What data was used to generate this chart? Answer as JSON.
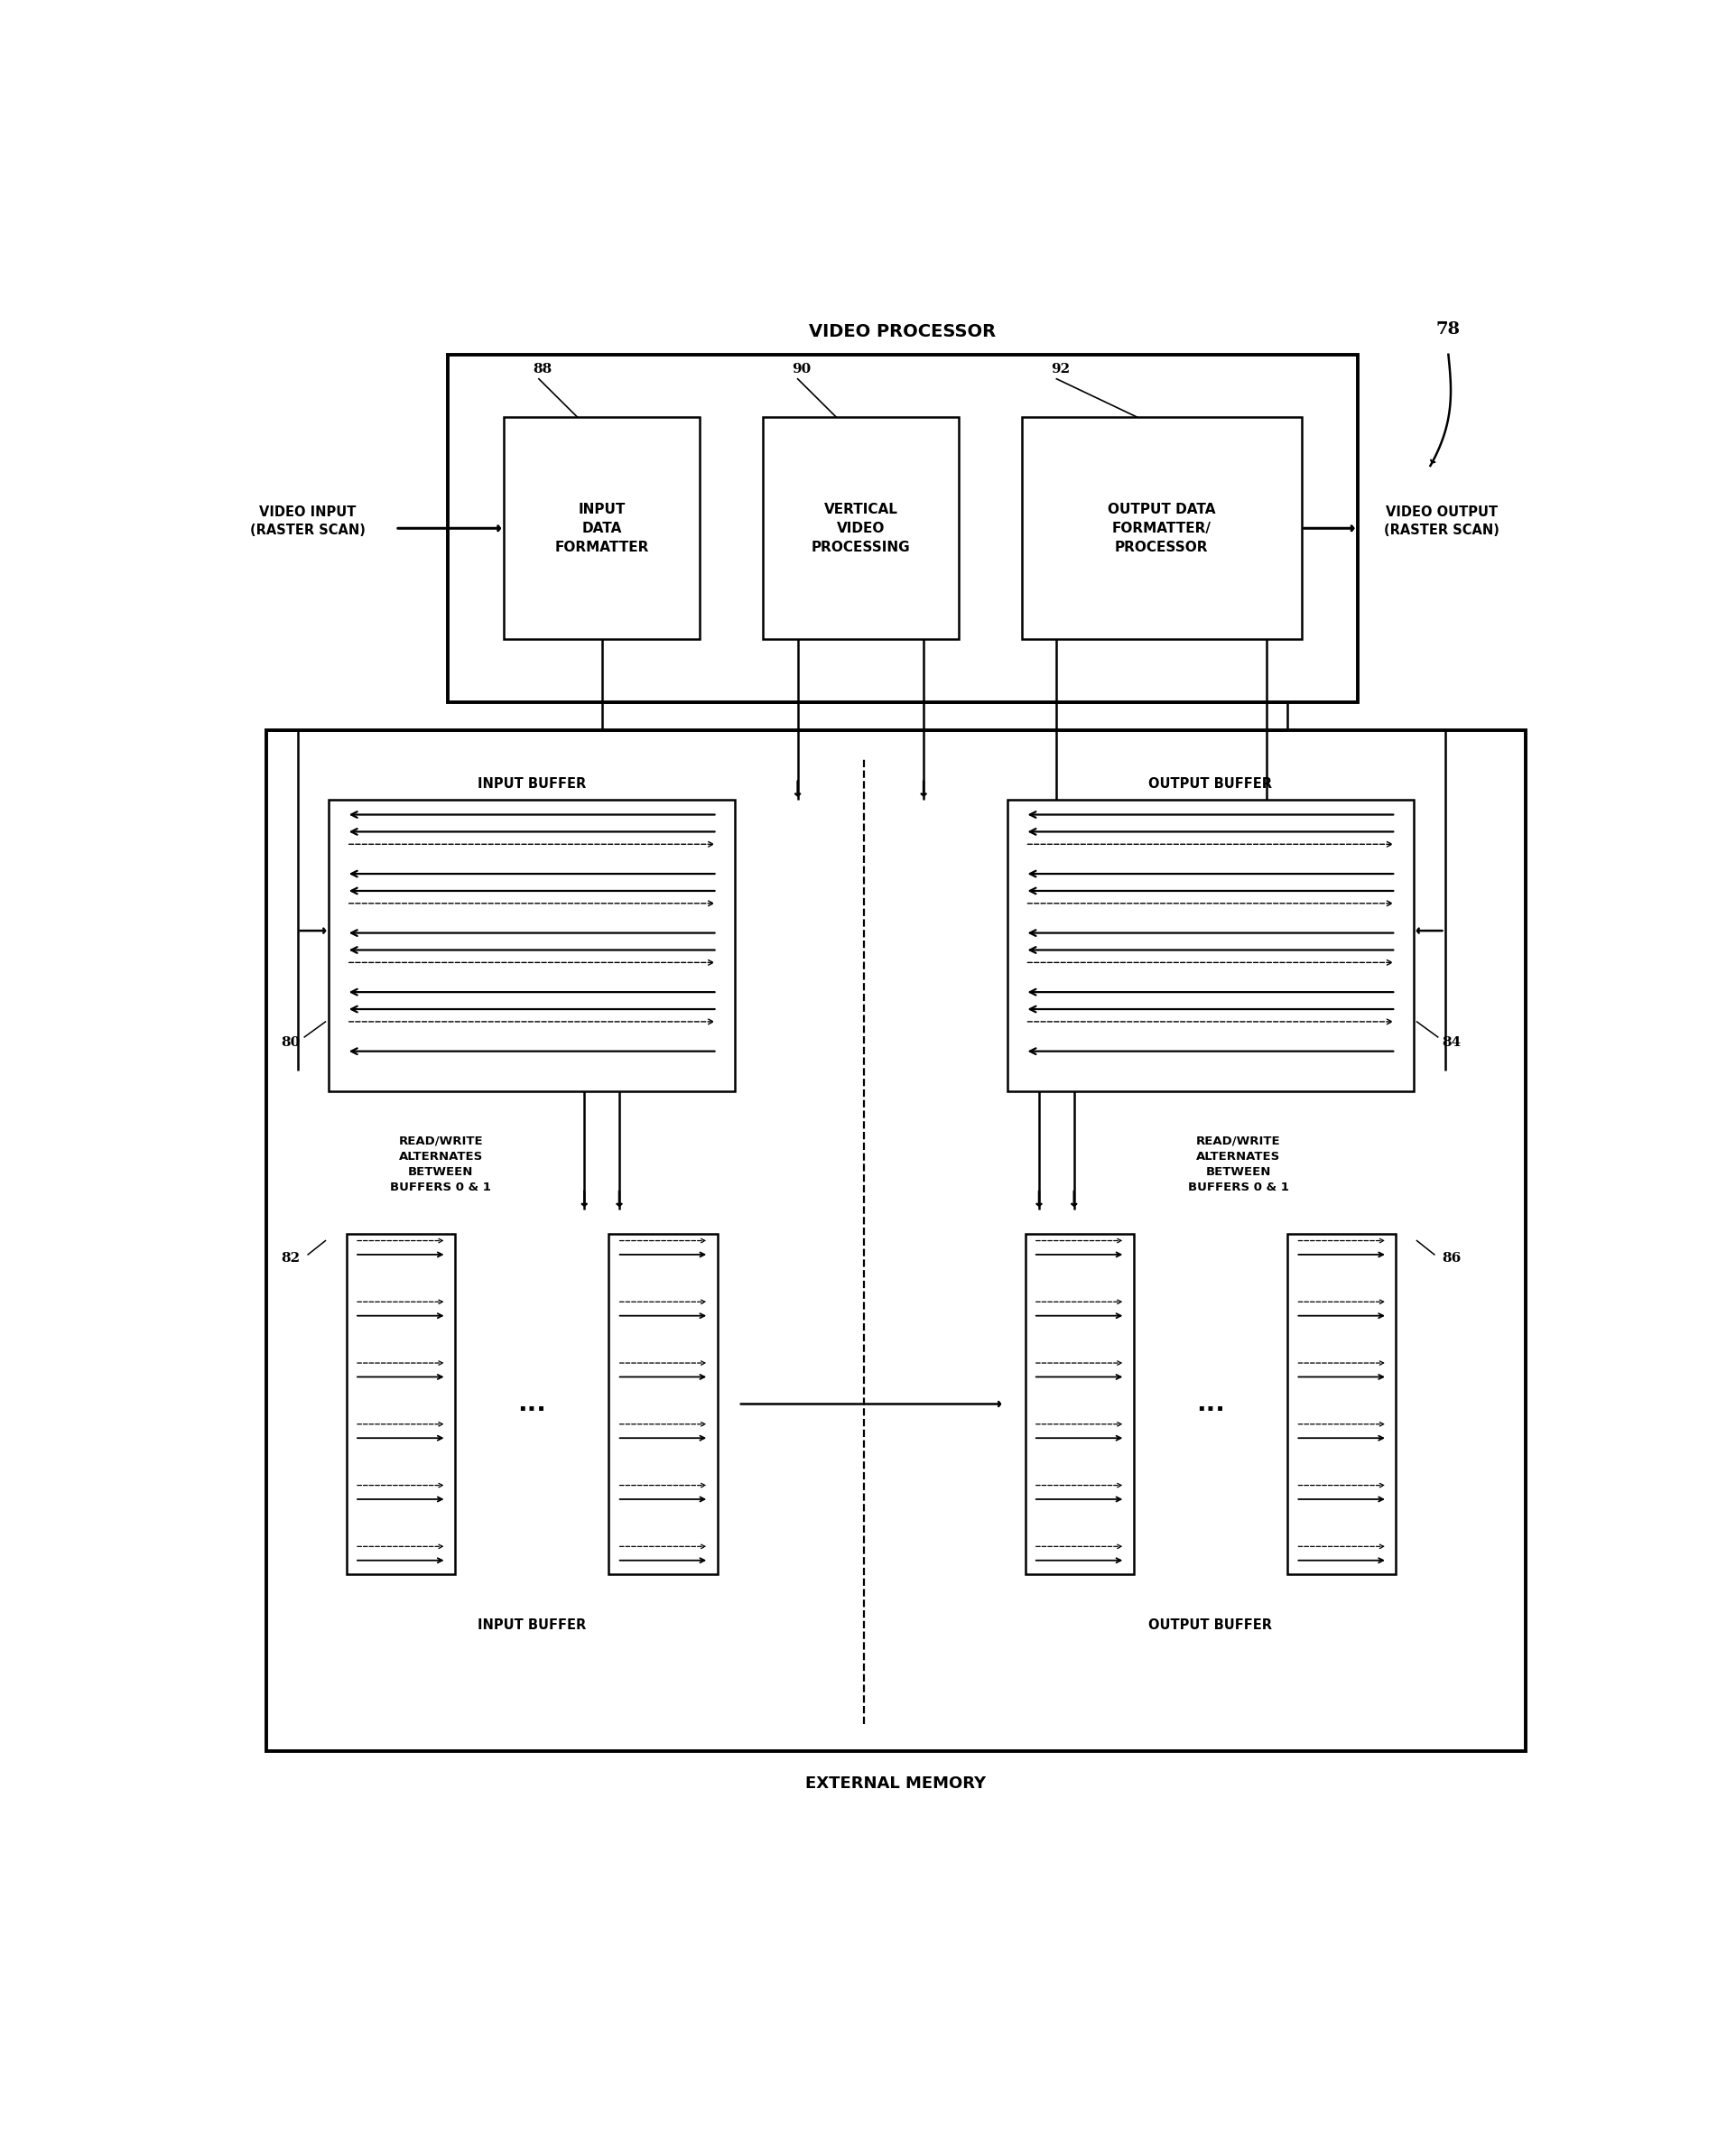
{
  "fig_number": "78",
  "bg_color": "#ffffff",
  "video_processor_label": "VIDEO PROCESSOR",
  "video_input_label": "VIDEO INPUT\n(RASTER SCAN)",
  "video_output_label": "VIDEO OUTPUT\n(RASTER SCAN)",
  "external_memory_label": "EXTERNAL MEMORY",
  "box88_label": "INPUT\nDATA\nFORMATTER",
  "box90_label": "VERTICAL\nVIDEO\nPROCESSING",
  "box92_label": "OUTPUT DATA\nFORMATTER/\nPROCESSOR",
  "num88": "88",
  "num90": "90",
  "num92": "92",
  "num80": "80",
  "num82": "82",
  "num84": "84",
  "num86": "86",
  "input_buffer_top_label": "INPUT BUFFER",
  "output_buffer_top_label": "OUTPUT BUFFER",
  "input_buffer_bot_label": "INPUT BUFFER",
  "output_buffer_bot_label": "OUTPUT BUFFER",
  "rw_label": "READ/WRITE\nALTERNATES\nBETWEEN\nBUFFERS 0 & 1"
}
